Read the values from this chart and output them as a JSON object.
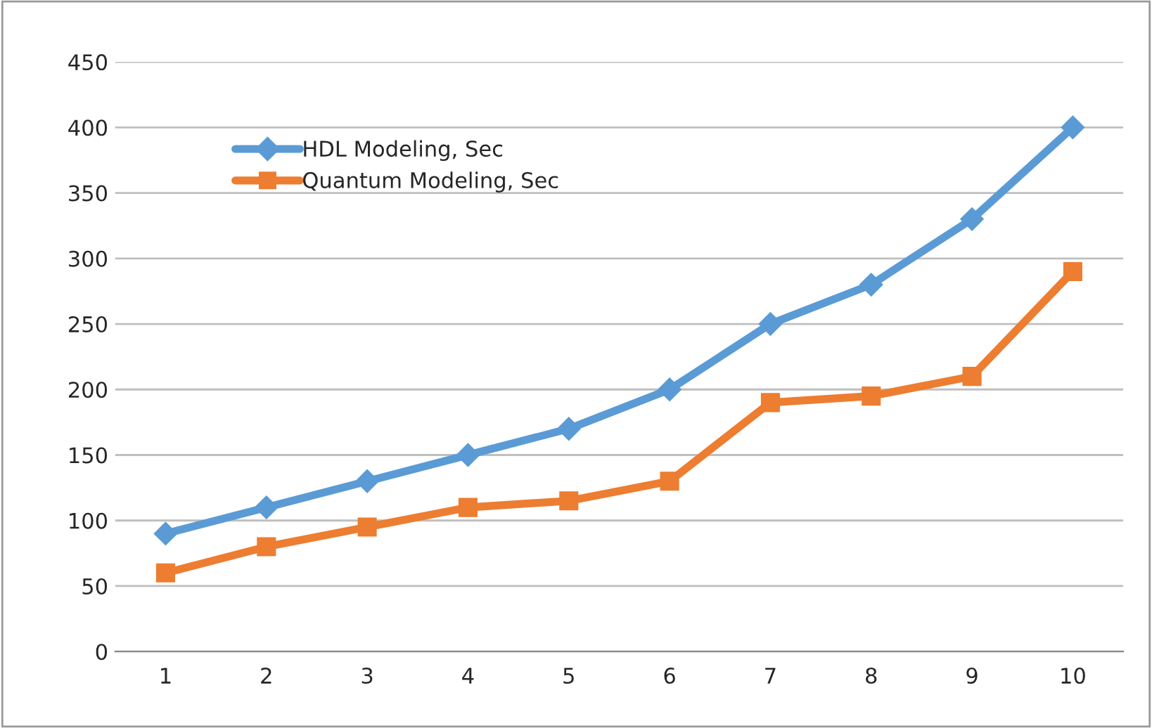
{
  "chart_data": {
    "type": "line",
    "categories": [
      "1",
      "2",
      "3",
      "4",
      "5",
      "6",
      "7",
      "8",
      "9",
      "10"
    ],
    "series": [
      {
        "name": "HDL Modeling, Sec",
        "color": "#5b9bd5",
        "marker": "diamond",
        "values": [
          90,
          110,
          130,
          150,
          170,
          200,
          250,
          280,
          330,
          400
        ]
      },
      {
        "name": "Quantum Modeling, Sec",
        "color": "#ed7d31",
        "marker": "square",
        "values": [
          60,
          80,
          95,
          110,
          115,
          130,
          190,
          195,
          210,
          290
        ]
      }
    ],
    "ylim": [
      0,
      450
    ],
    "yticks": [
      0,
      50,
      100,
      150,
      200,
      250,
      300,
      350,
      400,
      450
    ],
    "grid": "y",
    "legend": "top left",
    "line_style": "solid"
  }
}
